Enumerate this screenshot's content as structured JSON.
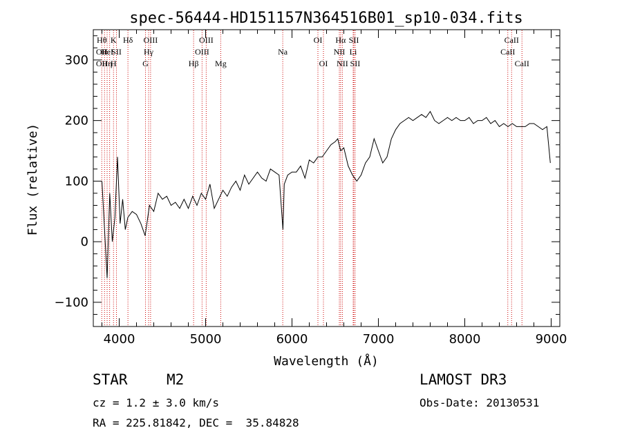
{
  "chart_data": {
    "type": "line",
    "title": "spec-56444-HD151157N364516B01_sp10-034.fits",
    "xlabel": "Wavelength (Å)",
    "ylabel": "Flux (relative)",
    "xlim": [
      3700,
      9100
    ],
    "ylim": [
      -140,
      350
    ],
    "xticks": [
      4000,
      5000,
      6000,
      7000,
      8000,
      9000
    ],
    "yticks": [
      -100,
      0,
      100,
      200,
      300
    ],
    "xtick_labels": [
      "4000",
      "5000",
      "6000",
      "7000",
      "8000",
      "9000"
    ],
    "ytick_labels": [
      "−100",
      "0",
      "100",
      "200",
      "300"
    ],
    "series": [
      {
        "x": [
          3800,
          3830,
          3860,
          3890,
          3920,
          3950,
          3980,
          4010,
          4040,
          4070,
          4100,
          4150,
          4200,
          4250,
          4300,
          4350,
          4400,
          4450,
          4500,
          4550,
          4600,
          4650,
          4700,
          4750,
          4800,
          4850,
          4900,
          4950,
          5000,
          5050,
          5100,
          5150,
          5200,
          5250,
          5300,
          5350,
          5400,
          5450,
          5500,
          5550,
          5600,
          5650,
          5700,
          5750,
          5800,
          5850,
          5895,
          5910,
          5950,
          6000,
          6050,
          6100,
          6150,
          6200,
          6250,
          6300,
          6350,
          6400,
          6450,
          6500,
          6530,
          6563,
          6600,
          6650,
          6700,
          6750,
          6800,
          6850,
          6900,
          6950,
          7000,
          7050,
          7100,
          7150,
          7200,
          7250,
          7300,
          7350,
          7400,
          7450,
          7500,
          7550,
          7600,
          7650,
          7700,
          7750,
          7800,
          7850,
          7900,
          7950,
          8000,
          8050,
          8100,
          8150,
          8200,
          8250,
          8300,
          8350,
          8400,
          8450,
          8500,
          8550,
          8600,
          8650,
          8700,
          8750,
          8800,
          8850,
          8900,
          8950,
          8990
        ],
        "values": [
          100,
          20,
          -60,
          80,
          0,
          40,
          140,
          30,
          70,
          20,
          40,
          50,
          45,
          30,
          10,
          60,
          50,
          80,
          70,
          75,
          60,
          65,
          55,
          70,
          55,
          75,
          60,
          80,
          70,
          95,
          55,
          70,
          85,
          75,
          90,
          100,
          85,
          110,
          95,
          105,
          115,
          105,
          100,
          120,
          115,
          110,
          20,
          95,
          110,
          115,
          115,
          125,
          105,
          135,
          130,
          140,
          140,
          150,
          160,
          165,
          170,
          150,
          155,
          125,
          110,
          100,
          110,
          130,
          140,
          170,
          150,
          130,
          140,
          170,
          185,
          195,
          200,
          205,
          200,
          205,
          210,
          205,
          215,
          200,
          195,
          200,
          205,
          200,
          205,
          200,
          200,
          205,
          195,
          200,
          200,
          205,
          195,
          200,
          190,
          195,
          190,
          195,
          190,
          190,
          190,
          195,
          195,
          190,
          185,
          190,
          130
        ]
      }
    ],
    "spectral_lines": [
      {
        "w": 3798,
        "top": "Hθ",
        "mid": "OII",
        "bot": "OII"
      },
      {
        "w": 3830,
        "top": "",
        "mid": "",
        "bot": ""
      },
      {
        "w": 3860,
        "top": "",
        "mid": "HeI",
        "bot": "Hη"
      },
      {
        "w": 3889,
        "top": "",
        "mid": "",
        "bot": ""
      },
      {
        "w": 3934,
        "top": "K",
        "mid": "",
        "bot": "H"
      },
      {
        "w": 3968,
        "top": "",
        "mid": "SII",
        "bot": ""
      },
      {
        "w": 4101,
        "top": "Hδ",
        "mid": "",
        "bot": ""
      },
      {
        "w": 4304,
        "top": "",
        "mid": "",
        "bot": "G"
      },
      {
        "w": 4340,
        "top": "",
        "mid": "Hγ",
        "bot": ""
      },
      {
        "w": 4363,
        "top": "OIII",
        "mid": "",
        "bot": ""
      },
      {
        "w": 4861,
        "top": "",
        "mid": "",
        "bot": "Hβ"
      },
      {
        "w": 4959,
        "top": "",
        "mid": "OIII",
        "bot": ""
      },
      {
        "w": 5007,
        "top": "OIII",
        "mid": "",
        "bot": ""
      },
      {
        "w": 5175,
        "top": "",
        "mid": "",
        "bot": "Mg"
      },
      {
        "w": 5893,
        "top": "",
        "mid": "Na",
        "bot": ""
      },
      {
        "w": 6300,
        "top": "OI",
        "mid": "",
        "bot": ""
      },
      {
        "w": 6364,
        "top": "",
        "mid": "",
        "bot": "OI"
      },
      {
        "w": 6548,
        "top": "",
        "mid": "NII",
        "bot": ""
      },
      {
        "w": 6563,
        "top": "Hα",
        "mid": "",
        "bot": ""
      },
      {
        "w": 6583,
        "top": "",
        "mid": "",
        "bot": "NII"
      },
      {
        "w": 6708,
        "top": "",
        "mid": "Li",
        "bot": ""
      },
      {
        "w": 6716,
        "top": "SII",
        "mid": "",
        "bot": ""
      },
      {
        "w": 6731,
        "top": "",
        "mid": "",
        "bot": "SII"
      },
      {
        "w": 8498,
        "top": "",
        "mid": "CaII",
        "bot": ""
      },
      {
        "w": 8542,
        "top": "CaII",
        "mid": "",
        "bot": ""
      },
      {
        "w": 8662,
        "top": "",
        "mid": "",
        "bot": "CaII"
      }
    ],
    "colors": {
      "spectrum": "#000000",
      "lines": "#cc0000",
      "axes": "#000000"
    }
  },
  "info": {
    "class": "STAR",
    "subclass": "M2",
    "cz": "cz = 1.2 ± 3.0 km/s",
    "radec": "RA = 225.81842, DEC =  35.84828",
    "survey": "LAMOST DR3",
    "obsdate": "Obs-Date: 20130531"
  }
}
